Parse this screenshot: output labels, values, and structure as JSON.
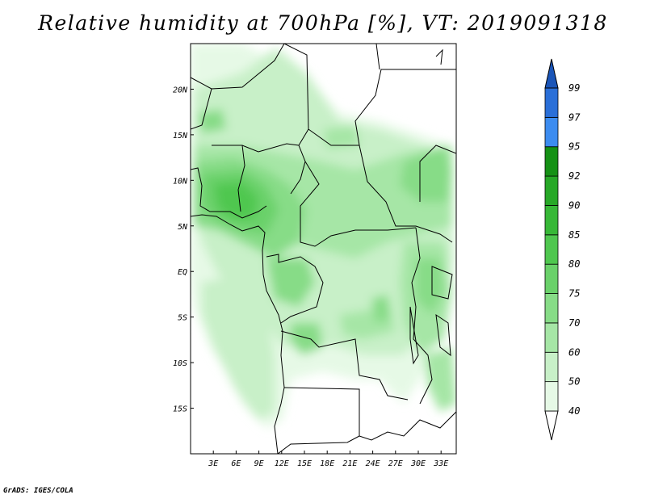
{
  "title": "Relative humidity at 700hPa [%], VT: 2019091318",
  "footer": "GrADS: IGES/COLA",
  "map": {
    "lon_range": [
      0,
      35
    ],
    "lat_range": [
      -20,
      25
    ],
    "lat_ticks": [
      "20N",
      "15N",
      "10N",
      "5N",
      "EQ",
      "5S",
      "10S",
      "15S"
    ],
    "lon_ticks": [
      "3E",
      "6E",
      "9E",
      "12E",
      "15E",
      "18E",
      "21E",
      "24E",
      "27E",
      "30E",
      "33E"
    ]
  },
  "colorbar": {
    "labels": [
      "40",
      "50",
      "60",
      "70",
      "75",
      "80",
      "85",
      "90",
      "92",
      "95",
      "97",
      "99"
    ],
    "colors": [
      "#ffffff",
      "#e6f9e6",
      "#c8f0c8",
      "#a6e6a6",
      "#87dc87",
      "#6ad16a",
      "#4fc74f",
      "#37b837",
      "#27a827",
      "#159115",
      "#3c8cf0",
      "#2a6fd8",
      "#1a55b8"
    ]
  }
}
